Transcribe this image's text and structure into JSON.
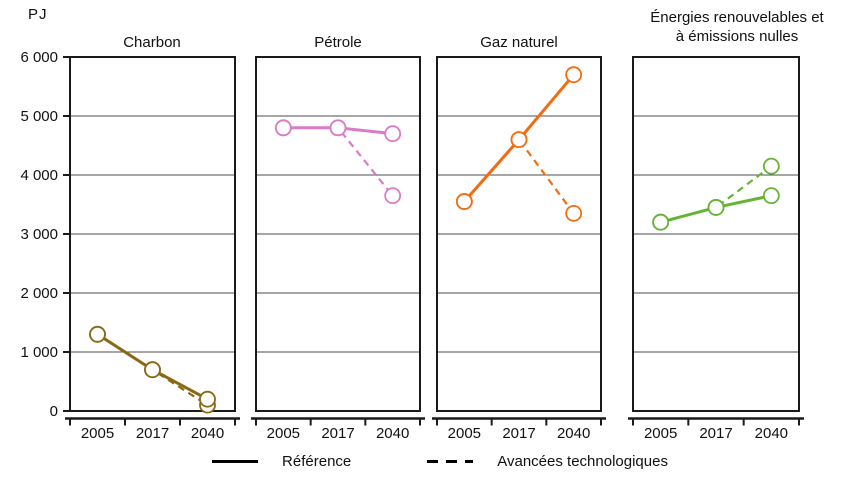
{
  "unit_label": "PJ",
  "y_axis": {
    "min": 0,
    "max": 6000,
    "step": 1000,
    "tick_labels": [
      "0",
      "1 000",
      "2 000",
      "3 000",
      "4 000",
      "5 000",
      "6 000"
    ]
  },
  "categories": [
    "2005",
    "2017",
    "2040"
  ],
  "legend": {
    "reference_label": "Référence",
    "advanced_label": "Avancées technologiques"
  },
  "colors": {
    "axis": "#1a1a1a",
    "gridline": "#4d4d4d",
    "charbon": "#8a6914",
    "petrole": "#da7bc8",
    "gaz_naturel": "#f26c13",
    "renouvelables": "#66b335"
  },
  "chart_data": [
    {
      "type": "line",
      "title": "Charbon",
      "color": "#8a6914",
      "x": [
        "2005",
        "2017",
        "2040"
      ],
      "ylim": [
        0,
        6000
      ],
      "series": [
        {
          "name": "Référence",
          "style": "solid",
          "values": [
            1300,
            700,
            200
          ]
        },
        {
          "name": "Avancées technologiques",
          "style": "dashed",
          "values": [
            1300,
            700,
            100
          ]
        }
      ]
    },
    {
      "type": "line",
      "title": "Pétrole",
      "color": "#da7bc8",
      "x": [
        "2005",
        "2017",
        "2040"
      ],
      "ylim": [
        0,
        6000
      ],
      "series": [
        {
          "name": "Référence",
          "style": "solid",
          "values": [
            4800,
            4800,
            4700
          ]
        },
        {
          "name": "Avancées technologiques",
          "style": "dashed",
          "values": [
            4800,
            4800,
            3650
          ]
        }
      ]
    },
    {
      "type": "line",
      "title": "Gaz naturel",
      "color": "#f26c13",
      "x": [
        "2005",
        "2017",
        "2040"
      ],
      "ylim": [
        0,
        6000
      ],
      "series": [
        {
          "name": "Référence",
          "style": "solid",
          "values": [
            3550,
            4600,
            5700
          ]
        },
        {
          "name": "Avancées technologiques",
          "style": "dashed",
          "values": [
            3550,
            4600,
            3350
          ]
        }
      ]
    },
    {
      "type": "line",
      "title": "Énergies renouvelables et à émissions nulles",
      "color": "#66b335",
      "x": [
        "2005",
        "2017",
        "2040"
      ],
      "ylim": [
        0,
        6000
      ],
      "series": [
        {
          "name": "Référence",
          "style": "solid",
          "values": [
            3200,
            3450,
            3650
          ]
        },
        {
          "name": "Avancées technologiques",
          "style": "dashed",
          "values": [
            3200,
            3450,
            4150
          ]
        }
      ]
    }
  ]
}
